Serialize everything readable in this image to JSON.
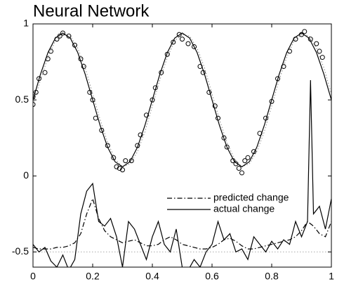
{
  "chart_data": {
    "type": "line",
    "title": "Neural Network",
    "xlim": [
      0,
      1
    ],
    "ylim": [
      -0.6,
      1
    ],
    "xticks": [
      0,
      0.2,
      0.4,
      0.6,
      0.8,
      1
    ],
    "yticks": [
      -0.5,
      0,
      0.5,
      1
    ],
    "legend": "center-right",
    "series": [
      {
        "color": "#888888",
        "style": "dotted",
        "x": [
          0,
          0.025,
          0.05,
          0.075,
          0.1,
          0.125,
          0.15,
          0.175,
          0.2,
          0.225,
          0.25,
          0.275,
          0.3,
          0.325,
          0.35,
          0.375,
          0.4,
          0.425,
          0.45,
          0.475,
          0.5,
          0.525,
          0.55,
          0.575,
          0.6,
          0.625,
          0.65,
          0.675,
          0.7,
          0.725,
          0.75,
          0.775,
          0.8,
          0.825,
          0.85,
          0.875,
          0.9,
          0.925,
          0.95,
          0.975,
          1
        ],
        "values": [
          0.47,
          0.63,
          0.78,
          0.89,
          0.93,
          0.92,
          0.84,
          0.71,
          0.54,
          0.37,
          0.22,
          0.11,
          0.06,
          0.08,
          0.16,
          0.29,
          0.46,
          0.63,
          0.78,
          0.89,
          0.93,
          0.92,
          0.84,
          0.71,
          0.54,
          0.37,
          0.22,
          0.11,
          0.06,
          0.08,
          0.16,
          0.29,
          0.46,
          0.63,
          0.78,
          0.89,
          0.93,
          0.92,
          0.84,
          0.71,
          0.54
        ]
      },
      {
        "color": "#000000",
        "style": "solid",
        "x": [
          0,
          0.025,
          0.05,
          0.075,
          0.1,
          0.125,
          0.15,
          0.175,
          0.2,
          0.225,
          0.25,
          0.275,
          0.3,
          0.325,
          0.35,
          0.375,
          0.4,
          0.425,
          0.45,
          0.475,
          0.5,
          0.525,
          0.55,
          0.575,
          0.6,
          0.625,
          0.65,
          0.675,
          0.7,
          0.725,
          0.75,
          0.775,
          0.8,
          0.825,
          0.85,
          0.875,
          0.9,
          0.925,
          0.95,
          0.975,
          1
        ],
        "values": [
          0.5,
          0.668,
          0.811,
          0.907,
          0.94,
          0.907,
          0.811,
          0.668,
          0.5,
          0.332,
          0.189,
          0.093,
          0.06,
          0.093,
          0.189,
          0.332,
          0.5,
          0.668,
          0.811,
          0.907,
          0.94,
          0.907,
          0.811,
          0.668,
          0.5,
          0.332,
          0.189,
          0.093,
          0.06,
          0.093,
          0.189,
          0.332,
          0.5,
          0.668,
          0.811,
          0.907,
          0.94,
          0.907,
          0.811,
          0.668,
          0.5
        ]
      },
      {
        "color": "#000000",
        "style": "none",
        "marker": "circle",
        "x": [
          0,
          0,
          0.01,
          0.02,
          0.04,
          0.05,
          0.06,
          0.08,
          0.09,
          0.1,
          0.12,
          0.14,
          0.16,
          0.17,
          0.19,
          0.2,
          0.21,
          0.23,
          0.25,
          0.27,
          0.28,
          0.29,
          0.3,
          0.31,
          0.33,
          0.35,
          0.36,
          0.38,
          0.4,
          0.41,
          0.43,
          0.45,
          0.47,
          0.49,
          0.5,
          0.52,
          0.54,
          0.56,
          0.57,
          0.59,
          0.61,
          0.62,
          0.64,
          0.65,
          0.67,
          0.68,
          0.69,
          0.7,
          0.71,
          0.72,
          0.74,
          0.76,
          0.78,
          0.8,
          0.82,
          0.84,
          0.86,
          0.88,
          0.9,
          0.91,
          0.93,
          0.95,
          0.96,
          0.97
        ],
        "values": [
          0.52,
          0.47,
          0.55,
          0.64,
          0.68,
          0.77,
          0.82,
          0.9,
          0.92,
          0.94,
          0.92,
          0.86,
          0.77,
          0.72,
          0.55,
          0.5,
          0.38,
          0.3,
          0.2,
          0.12,
          0.06,
          0.05,
          0.04,
          0.1,
          0.1,
          0.2,
          0.27,
          0.4,
          0.5,
          0.58,
          0.68,
          0.8,
          0.88,
          0.93,
          0.9,
          0.87,
          0.85,
          0.72,
          0.68,
          0.55,
          0.46,
          0.38,
          0.25,
          0.19,
          0.1,
          0.08,
          0.05,
          0.02,
          0.1,
          0.12,
          0.16,
          0.28,
          0.38,
          0.49,
          0.64,
          0.72,
          0.82,
          0.9,
          0.93,
          0.95,
          0.9,
          0.87,
          0.82,
          0.78
        ]
      },
      {
        "color": "#aaaaaa",
        "style": "dotted",
        "x": [
          0,
          1
        ],
        "values": [
          -0.5,
          -0.5
        ]
      },
      {
        "name": "predicted change",
        "color": "#000000",
        "style": "dashdot",
        "x": [
          0,
          0.02,
          0.04,
          0.06,
          0.08,
          0.1,
          0.12,
          0.14,
          0.16,
          0.18,
          0.2,
          0.22,
          0.24,
          0.26,
          0.28,
          0.3,
          0.32,
          0.34,
          0.36,
          0.38,
          0.4,
          0.42,
          0.44,
          0.46,
          0.48,
          0.5,
          0.52,
          0.54,
          0.56,
          0.58,
          0.6,
          0.62,
          0.64,
          0.66,
          0.68,
          0.7,
          0.72,
          0.74,
          0.76,
          0.78,
          0.8,
          0.82,
          0.84,
          0.86,
          0.88,
          0.9,
          0.92,
          0.94,
          0.96,
          0.98,
          1
        ],
        "values": [
          -0.47,
          -0.48,
          -0.48,
          -0.48,
          -0.47,
          -0.47,
          -0.46,
          -0.44,
          -0.38,
          -0.25,
          -0.15,
          -0.28,
          -0.36,
          -0.4,
          -0.42,
          -0.44,
          -0.43,
          -0.42,
          -0.44,
          -0.46,
          -0.46,
          -0.45,
          -0.42,
          -0.4,
          -0.42,
          -0.45,
          -0.46,
          -0.47,
          -0.48,
          -0.48,
          -0.47,
          -0.45,
          -0.42,
          -0.41,
          -0.43,
          -0.46,
          -0.48,
          -0.48,
          -0.47,
          -0.46,
          -0.45,
          -0.44,
          -0.43,
          -0.42,
          -0.4,
          -0.36,
          -0.3,
          -0.33,
          -0.38,
          -0.4,
          -0.3
        ]
      },
      {
        "name": "actual change",
        "color": "#000000",
        "style": "solid",
        "x": [
          0,
          0.02,
          0.04,
          0.06,
          0.08,
          0.1,
          0.12,
          0.14,
          0.16,
          0.18,
          0.2,
          0.22,
          0.24,
          0.26,
          0.28,
          0.3,
          0.32,
          0.34,
          0.36,
          0.38,
          0.4,
          0.42,
          0.44,
          0.46,
          0.48,
          0.5,
          0.52,
          0.54,
          0.56,
          0.58,
          0.6,
          0.62,
          0.64,
          0.66,
          0.68,
          0.7,
          0.72,
          0.74,
          0.76,
          0.78,
          0.8,
          0.82,
          0.84,
          0.86,
          0.88,
          0.9,
          0.92,
          0.93,
          0.94,
          0.96,
          0.98,
          1
        ],
        "values": [
          -0.45,
          -0.5,
          -0.47,
          -0.56,
          -0.6,
          -0.52,
          -0.62,
          -0.55,
          -0.25,
          -0.1,
          -0.05,
          -0.3,
          -0.33,
          -0.28,
          -0.4,
          -0.6,
          -0.3,
          -0.35,
          -0.45,
          -0.55,
          -0.4,
          -0.3,
          -0.45,
          -0.5,
          -0.35,
          -0.6,
          -0.62,
          -0.55,
          -0.6,
          -0.5,
          -0.45,
          -0.3,
          -0.42,
          -0.38,
          -0.5,
          -0.48,
          -0.55,
          -0.4,
          -0.45,
          -0.5,
          -0.43,
          -0.48,
          -0.42,
          -0.45,
          -0.3,
          -0.4,
          -0.3,
          0.63,
          -0.25,
          -0.2,
          -0.35,
          -0.15
        ]
      }
    ]
  }
}
